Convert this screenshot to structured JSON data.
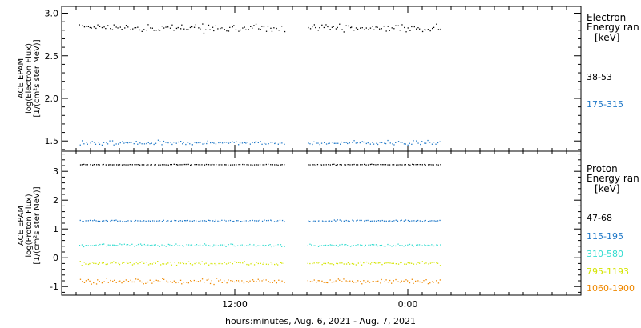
{
  "x_axis": {
    "label": "hours:minutes, Aug.  6, 2021 - Aug.  7, 2021",
    "ticks": [
      {
        "hour": 12,
        "label": "12:00"
      },
      {
        "hour": 24,
        "label": "0:00"
      }
    ]
  },
  "colors": {
    "frame": "#000000",
    "black": "#000000",
    "blue": "#1f78c8",
    "cyan": "#33dcd0",
    "yellow": "#d4e400",
    "orange": "#ee8800"
  },
  "chart_data": [
    {
      "type": "scatter",
      "panel": "electron",
      "ylabel_lines": [
        "ACE EPAM",
        "log(Electron Flux)",
        "[1/(cm²s ster MeV)]"
      ],
      "ylim": [
        1.38,
        3.08
      ],
      "yticks": [
        {
          "v": 1.5,
          "label": "1.5"
        },
        {
          "v": 2.0,
          "label": "2.0"
        },
        {
          "v": 2.5,
          "label": "2.5"
        },
        {
          "v": 3.0,
          "label": "3.0"
        }
      ],
      "xlim_hours": [
        0,
        36
      ],
      "data_gap_hours": [
        15.5,
        17.0
      ],
      "data_end_hours": 26.3,
      "legend_title": [
        "Electron",
        "Energy ran"
      ],
      "legend_unit": "[keV]",
      "series": [
        {
          "name": "38-53",
          "color": "#000000",
          "level": 2.83,
          "spread": 0.06
        },
        {
          "name": "175-315",
          "color": "#1f78c8",
          "level": 1.48,
          "spread": 0.04
        }
      ]
    },
    {
      "type": "scatter",
      "panel": "proton",
      "ylabel_lines": [
        "ACE EPAM",
        "log(Proton Flux)",
        "[1/(cm²s ster MeV)]"
      ],
      "ylim": [
        -1.3,
        3.7
      ],
      "yticks": [
        {
          "v": -1,
          "label": "-1"
        },
        {
          "v": 0,
          "label": "0"
        },
        {
          "v": 1,
          "label": "1"
        },
        {
          "v": 2,
          "label": "2"
        },
        {
          "v": 3,
          "label": "3"
        }
      ],
      "xlim_hours": [
        0,
        36
      ],
      "data_gap_hours": [
        15.5,
        17.0
      ],
      "data_end_hours": 26.3,
      "legend_title": [
        "Proton",
        "Energy ran"
      ],
      "legend_unit": "[keV]",
      "series": [
        {
          "name": "47-68",
          "color": "#000000",
          "level": 3.25,
          "spread": 0.02
        },
        {
          "name": "115-195",
          "color": "#1f78c8",
          "level": 1.3,
          "spread": 0.04
        },
        {
          "name": "310-580",
          "color": "#33dcd0",
          "level": 0.45,
          "spread": 0.07
        },
        {
          "name": "795-1193",
          "color": "#d4e400",
          "level": -0.18,
          "spread": 0.09
        },
        {
          "name": "1060-1900",
          "color": "#ee8800",
          "level": -0.8,
          "spread": 0.13
        }
      ]
    }
  ]
}
